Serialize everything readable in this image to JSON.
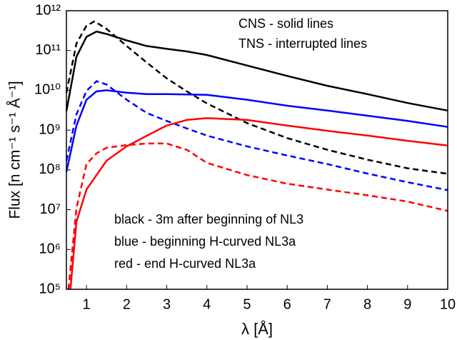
{
  "chart_data": {
    "type": "line",
    "x_label": "λ [Å]",
    "y_label": "Flux [n cm⁻¹ s⁻¹ Å⁻¹]",
    "log_y": true,
    "xlim": [
      0.5,
      10
    ],
    "ylim": [
      100000.0,
      1000000000000.0
    ],
    "xticks": [
      1,
      2,
      3,
      4,
      5,
      6,
      7,
      8,
      9,
      10
    ],
    "yticks": [
      {
        "value": 100000.0,
        "label": "10⁵"
      },
      {
        "value": 1000000.0,
        "label": "10⁶"
      },
      {
        "value": 10000000.0,
        "label": "10⁷"
      },
      {
        "value": 100000000.0,
        "label": "10⁸"
      },
      {
        "value": 1000000000.0,
        "label": "10⁹"
      },
      {
        "value": 10000000000.0,
        "label": "10¹⁰"
      },
      {
        "value": 100000000000.0,
        "label": "10¹¹"
      },
      {
        "value": 1000000000000.0,
        "label": "10¹²"
      }
    ],
    "annotations": [
      "CNS - solid lines",
      "TNS - interrupted lines",
      "black - 3m after beginning of NL3",
      "blue - beginning H-curved NL3a",
      "red - end H-curved NL3a"
    ],
    "series": [
      {
        "color": "#000000",
        "dashed": false,
        "x": [
          0.5,
          0.75,
          1,
          1.25,
          1.5,
          2,
          2.5,
          3,
          3.5,
          4,
          5,
          6,
          7,
          8,
          9,
          10
        ],
        "values": [
          3000000000.0,
          70000000000.0,
          220000000000.0,
          300000000000.0,
          260000000000.0,
          180000000000.0,
          130000000000.0,
          110000000000.0,
          95000000000.0,
          77000000000.0,
          42000000000.0,
          23000000000.0,
          13000000000.0,
          8000000000.0,
          4800000000.0,
          3100000000.0
        ]
      },
      {
        "color": "#000000",
        "dashed": true,
        "x": [
          0.5,
          0.75,
          1,
          1.2,
          1.5,
          2,
          2.5,
          3,
          3.5,
          4,
          5,
          6,
          7,
          8,
          9,
          10
        ],
        "values": [
          8700000000.0,
          150000000000.0,
          420000000000.0,
          540000000000.0,
          350000000000.0,
          130000000000.0,
          50000000000.0,
          20000000000.0,
          9400000000.0,
          4700000000.0,
          1500000000.0,
          630000000.0,
          320000000.0,
          180000000.0,
          110000000.0,
          80000000.0
        ]
      },
      {
        "color": "#0000ff",
        "dashed": false,
        "x": [
          0.5,
          0.75,
          1,
          1.25,
          1.5,
          2,
          2.5,
          3,
          4,
          5,
          6,
          7,
          8,
          9,
          10
        ],
        "values": [
          90000000.0,
          1300000000.0,
          5800000000.0,
          9400000000.0,
          10000000000.0,
          8700000000.0,
          8000000000.0,
          8000000000.0,
          7700000000.0,
          5800000000.0,
          4100000000.0,
          3100000000.0,
          2300000000.0,
          1700000000.0,
          1200000000.0
        ]
      },
      {
        "color": "#0000ff",
        "dashed": true,
        "x": [
          0.5,
          0.75,
          1,
          1.25,
          1.5,
          2,
          2.5,
          3,
          3.5,
          4,
          5,
          6,
          7,
          8,
          9,
          10
        ],
        "values": [
          170000000.0,
          2500000000.0,
          9700000000.0,
          17000000000.0,
          14000000000.0,
          5800000000.0,
          2700000000.0,
          1700000000.0,
          1100000000.0,
          730000000.0,
          390000000.0,
          230000000.0,
          140000000.0,
          81000000.0,
          49000000.0,
          31000000.0
        ]
      },
      {
        "color": "#ff0000",
        "dashed": false,
        "x": [
          0.6,
          0.75,
          1,
          1.5,
          2,
          2.5,
          3,
          3.5,
          4,
          5,
          6,
          7,
          8,
          9,
          10
        ],
        "values": [
          100000.0,
          5000000.0,
          32000000.0,
          170000000.0,
          390000000.0,
          720000000.0,
          1300000000.0,
          1800000000.0,
          2000000000.0,
          1800000000.0,
          1300000000.0,
          960000000.0,
          730000000.0,
          540000000.0,
          410000000.0
        ]
      },
      {
        "color": "#ff0000",
        "dashed": true,
        "x": [
          0.55,
          0.75,
          1,
          1.25,
          1.5,
          2,
          2.5,
          3,
          3.5,
          4,
          5,
          6,
          7,
          8,
          9,
          10
        ],
        "values": [
          100000.0,
          11000000.0,
          140000000.0,
          260000000.0,
          360000000.0,
          420000000.0,
          460000000.0,
          460000000.0,
          320000000.0,
          150000000.0,
          74000000.0,
          45000000.0,
          32000000.0,
          23000000.0,
          16000000.0,
          9300000.0
        ]
      }
    ]
  }
}
